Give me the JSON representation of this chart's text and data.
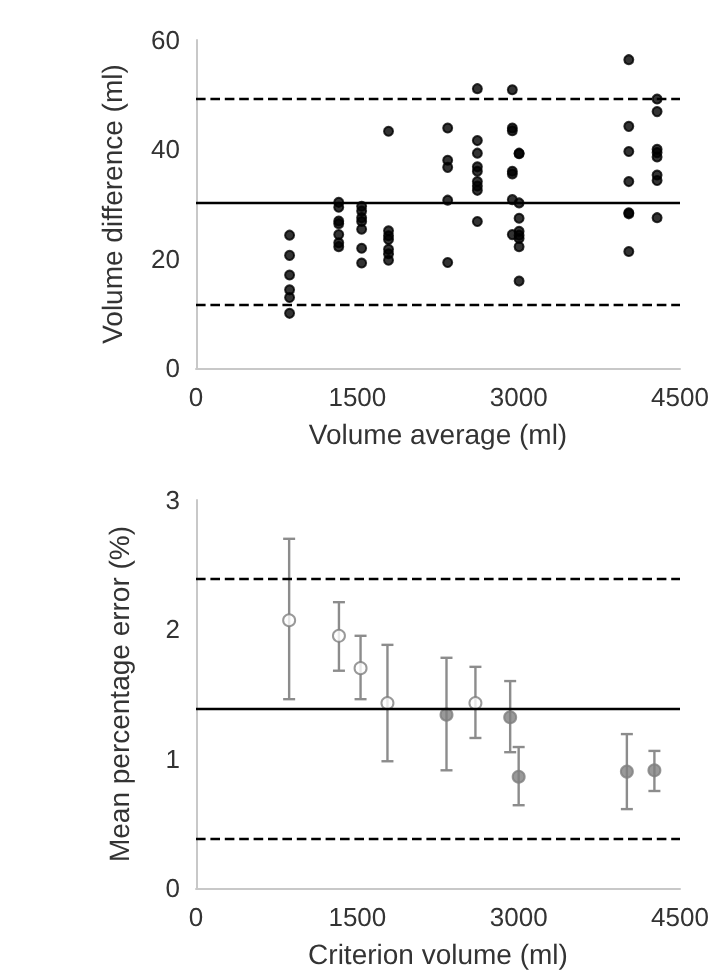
{
  "chart_data": [
    {
      "type": "scatter",
      "ylabel": "Volume difference (ml)",
      "xlabel": "Volume average (ml)",
      "xlim": [
        0,
        4500
      ],
      "xticks": [
        0,
        1500,
        3000,
        4500
      ],
      "ylim": [
        0,
        60
      ],
      "yticks": [
        0,
        20,
        40,
        60
      ],
      "grid": false,
      "marker": "circle",
      "series": [
        {
          "color": "#000000",
          "x": [
            870,
            870,
            870,
            870,
            870,
            870,
            1327,
            1327,
            1327,
            1327,
            1327,
            1327,
            1327,
            1540,
            1540,
            1540,
            1540,
            1540,
            1540,
            1540,
            1790,
            1790,
            1790,
            1790,
            1790,
            1790,
            1790,
            2340,
            2340,
            2340,
            2340,
            2340,
            2616,
            2616,
            2616,
            2616,
            2616,
            2616,
            2616,
            2616,
            2616,
            2941,
            2941,
            2941,
            2941,
            2941,
            2941,
            2941,
            3004,
            3004,
            3004,
            3004,
            3004,
            3004,
            3004,
            3004,
            3004,
            4024,
            4024,
            4024,
            4024,
            4024,
            4024,
            4024,
            4287,
            4287,
            4287,
            4287,
            4287,
            4287,
            4287,
            4287
          ],
          "values": [
            24.3,
            20.6,
            17.0,
            14.3,
            12.9,
            10.0,
            30.3,
            29.4,
            26.9,
            26.4,
            24.4,
            22.9,
            22.2,
            29.6,
            28.7,
            27.5,
            26.8,
            25.4,
            21.9,
            19.2,
            43.3,
            25.1,
            24.2,
            23.5,
            21.7,
            20.9,
            19.7,
            43.9,
            38.0,
            36.7,
            30.7,
            19.3,
            51.1,
            41.6,
            39.3,
            36.8,
            36.0,
            34.1,
            33.3,
            32.5,
            26.8,
            50.9,
            43.9,
            43.4,
            36.0,
            35.5,
            30.8,
            24.4,
            39.3,
            39.2,
            30.2,
            27.4,
            25.0,
            24.3,
            23.7,
            22.2,
            15.9,
            56.4,
            44.2,
            39.6,
            34.1,
            28.4,
            28.2,
            21.3,
            49.2,
            46.9,
            40.0,
            39.4,
            38.6,
            35.3,
            34.3,
            27.5
          ]
        }
      ],
      "ref_lines": [
        {
          "axis": "y",
          "value": 30.4,
          "line_style": "solid",
          "color": "#000000"
        },
        {
          "axis": "y",
          "value": 49.4,
          "line_style": "dashed",
          "color": "#000000"
        },
        {
          "axis": "y",
          "value": 11.6,
          "line_style": "dashed",
          "color": "#000000"
        }
      ]
    },
    {
      "type": "scatter",
      "ylabel": "Mean percentage error (%)",
      "xlabel": "Criterion volume (ml)",
      "xlim": [
        0,
        4500
      ],
      "xticks": [
        0,
        1500,
        3000,
        4500
      ],
      "ylim": [
        0,
        3
      ],
      "yticks": [
        0,
        1,
        2,
        3
      ],
      "grid": false,
      "marker": "circle",
      "series": [
        {
          "color": "#ffffff",
          "x": [
            866,
            1329,
            1530,
            1780,
            2598
          ],
          "values": [
            2.07,
            1.95,
            1.7,
            1.43,
            1.43
          ],
          "errors": [
            [
              1.46,
              2.7
            ],
            [
              1.68,
              2.21
            ],
            [
              1.46,
              1.95
            ],
            [
              0.98,
              1.88
            ],
            [
              1.16,
              1.71
            ]
          ]
        },
        {
          "color": "#7f7f7f",
          "x": [
            2329,
            2921,
            3000,
            4006,
            4262
          ],
          "values": [
            1.34,
            1.32,
            0.86,
            0.9,
            0.91
          ],
          "errors": [
            [
              0.91,
              1.78
            ],
            [
              1.05,
              1.6
            ],
            [
              0.64,
              1.09
            ],
            [
              0.61,
              1.19
            ],
            [
              0.75,
              1.06
            ]
          ]
        }
      ],
      "ref_lines": [
        {
          "axis": "y",
          "value": 1.39,
          "line_style": "solid",
          "color": "#000000"
        },
        {
          "axis": "y",
          "value": 2.4,
          "line_style": "dashed",
          "color": "#000000"
        },
        {
          "axis": "y",
          "value": 0.39,
          "line_style": "dashed",
          "color": "#000000"
        }
      ]
    }
  ]
}
